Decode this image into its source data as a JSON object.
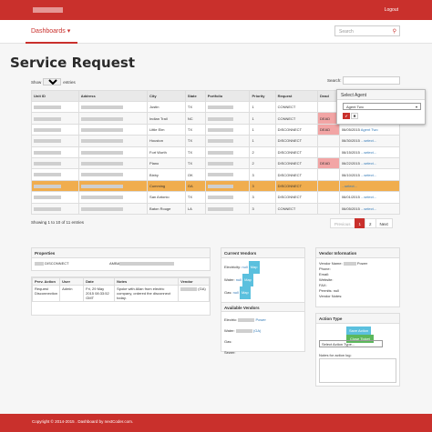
{
  "header": {
    "logout": "Logout"
  },
  "nav": {
    "dashboards": "Dashboards",
    "search_placeholder": "Search"
  },
  "page": {
    "title": "Service Request"
  },
  "table_controls": {
    "show": "Show",
    "page_size": "10",
    "entries": "entries",
    "search_label": "Search:"
  },
  "columns": [
    "Unit ID",
    "Address",
    "City",
    "State",
    "Portfolio",
    "Priority",
    "Request",
    "Dead",
    "Agent"
  ],
  "rows": [
    {
      "city": "Justin",
      "state": "TX",
      "priority": "1",
      "request": "CONNECT",
      "dead": "",
      "agent": "...select..."
    },
    {
      "city": "Indian Trail",
      "state": "NC",
      "priority": "1",
      "request": "CONNECT",
      "dead": "DEAD",
      "agent": "...select..."
    },
    {
      "city": "Little Elm",
      "state": "TX",
      "priority": "1",
      "request": "DISCONNECT",
      "dead": "DEAD",
      "agent": "Agent Two",
      "date": "06/05/2015"
    },
    {
      "city": "Houston",
      "state": "TX",
      "priority": "1",
      "request": "DISCONNECT",
      "dead": "",
      "agent": "...select...",
      "date": "06/30/2015"
    },
    {
      "city": "Fort Worth",
      "state": "TX",
      "priority": "2",
      "request": "DISCONNECT",
      "dead": "",
      "agent": "...select...",
      "date": "06/15/2015"
    },
    {
      "city": "Plano",
      "state": "TX",
      "priority": "2",
      "request": "DISCONNECT",
      "dead": "DEAD",
      "agent": "...select...",
      "date": "06/22/2015"
    },
    {
      "city": "Bixby",
      "state": "OK",
      "priority": "3",
      "request": "DISCONNECT",
      "dead": "",
      "agent": "...select...",
      "date": "06/10/2015"
    },
    {
      "city": "Cumming",
      "state": "GA",
      "priority": "3",
      "request": "DISCONNECT",
      "dead": "",
      "agent": "...select..."
    },
    {
      "city": "San Antonio",
      "state": "TX",
      "priority": "3",
      "request": "DISCONNECT",
      "dead": "",
      "agent": "...select...",
      "date": "06/01/2015"
    },
    {
      "city": "Baton Rouge",
      "state": "LA",
      "priority": "3",
      "request": "CONNECT",
      "dead": "",
      "agent": "...select...",
      "date": "06/05/2015"
    }
  ],
  "popover": {
    "title": "Select Agent",
    "selected": "Agent Two",
    "ok": "✔",
    "cancel": "✖"
  },
  "showing": "Showing 1 to 10 of 11 entries",
  "pager": {
    "previous": "Previous",
    "p1": "1",
    "p2": "2",
    "next": "Next"
  },
  "properties": {
    "title": "Properties",
    "status": "DISCONNECT",
    "col_prev": "Prev. Action",
    "col_user": "User",
    "col_date": "Date",
    "col_notes": "Notes",
    "col_vendor": "Vendor",
    "prev_action": "Request Disconnection",
    "user": "Admin",
    "date": "Fri, 29 May 2015 08:33:52 GMT",
    "notes": "Spoke with Allan from electric company, ordered the disconnect today.",
    "vendor_suffix": "(GA)"
  },
  "current_vendors": {
    "title": "Current Vendors",
    "electricity": "Electricity:",
    "gas": "Gas:",
    "water": "Water:",
    "null": "null",
    "map": "Map"
  },
  "available_vendors": {
    "title": "Available Vendors",
    "electric": "Electric:",
    "electric_val": "Power",
    "water": "Water:",
    "water_val": "(GA)",
    "gas": "Gas:",
    "sewer": "Sewer:"
  },
  "vendor_info": {
    "title": "Vendor Information",
    "name": "Vendor Name:",
    "name_val": "Power",
    "phone": "Phone:",
    "email": "Email:",
    "website": "Website:",
    "fax": "FAX:",
    "permits": "Permits: null",
    "notes": "Vendor Notes:"
  },
  "action": {
    "title": "Action Type",
    "save": "Save Action",
    "close": "Close Ticket",
    "select": "Select Action Type...",
    "notes_label": "Notes for action log:"
  },
  "footer": {
    "text": "Copyright © 2014-2015 . Dashboard by nextCoder.com."
  }
}
